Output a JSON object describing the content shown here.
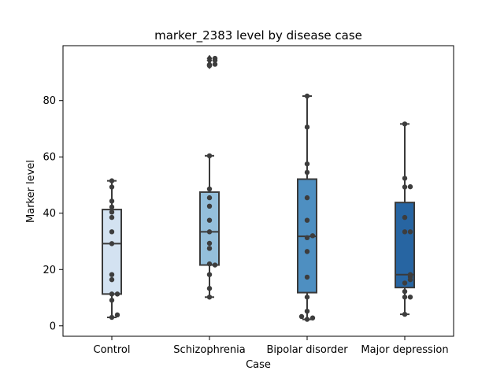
{
  "chart_data": {
    "type": "box",
    "title": "marker_2383 level by disease case",
    "xlabel": "Case",
    "ylabel": "Marker level",
    "categories": [
      "Control",
      "Schizophrenia",
      "Bipolar disorder",
      "Major depression"
    ],
    "ylim": [
      -3.7,
      99.5
    ],
    "yticks": [
      0,
      20,
      40,
      60,
      80
    ],
    "grid": false,
    "box_colors": [
      "#d3e2f1",
      "#94bfdb",
      "#4e8fc1",
      "#2765a2"
    ],
    "edge_color": "#3a3a3a",
    "point_color": "#3d3d3d",
    "boxes": [
      {
        "q1": 11.3,
        "median": 29.2,
        "q3": 41.3,
        "whisker_low": 3.0,
        "whisker_high": 51.5,
        "outliers": []
      },
      {
        "q1": 21.6,
        "median": 33.4,
        "q3": 47.5,
        "whisker_low": 10.2,
        "whisker_high": 60.4,
        "outliers": [
          92.4,
          92.9,
          94.3,
          95.0
        ]
      },
      {
        "q1": 11.8,
        "median": 31.8,
        "q3": 52.1,
        "whisker_low": 2.3,
        "whisker_high": 81.6,
        "outliers": []
      },
      {
        "q1": 13.6,
        "median": 18.2,
        "q3": 43.8,
        "whisker_low": 4.1,
        "whisker_high": 71.7,
        "outliers": []
      }
    ],
    "points": [
      [
        3.0,
        3.9,
        9.1,
        11.3,
        11.3,
        16.4,
        18.2,
        29.2,
        33.4,
        38.5,
        40.4,
        42.2,
        44.3,
        49.3,
        51.5
      ],
      [
        10.2,
        13.3,
        18.2,
        22.0,
        21.6,
        27.5,
        29.3,
        33.4,
        37.5,
        42.5,
        45.5,
        48.6,
        60.4,
        92.4,
        92.9,
        94.3,
        95.0
      ],
      [
        2.3,
        2.8,
        3.3,
        5.2,
        10.2,
        17.3,
        26.4,
        31.3,
        32.0,
        37.5,
        45.5,
        54.5,
        57.5,
        70.6,
        81.6
      ],
      [
        4.1,
        10.2,
        10.2,
        12.2,
        15.2,
        16.4,
        17.4,
        18.2,
        33.4,
        33.4,
        38.5,
        49.3,
        49.4,
        52.4,
        71.7
      ]
    ]
  }
}
